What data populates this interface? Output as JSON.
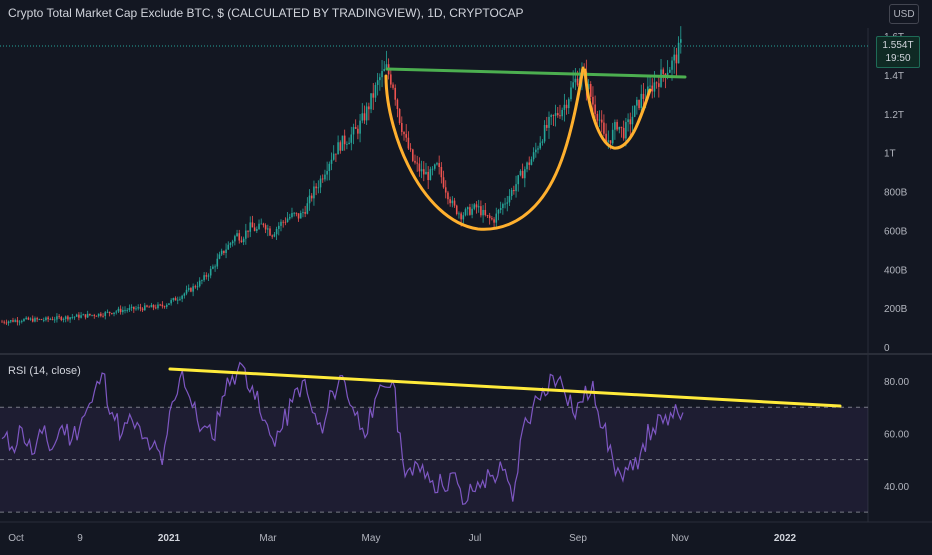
{
  "header": {
    "title": "Crypto Total Market Cap Exclude BTC, $ (CALCULATED BY TRADINGVIEW), 1D, CRYPTOCAP",
    "currency": "USD"
  },
  "price_tag": {
    "value": "1.554T",
    "countdown": "19:50"
  },
  "rsi_label": "RSI (14, close)",
  "colors": {
    "background": "#131722",
    "up_candle": "#26a69a",
    "down_candle": "#ef5350",
    "rsi_line": "#7e57c2",
    "trend_green": "#4caf50",
    "cup_orange": "#ffb02e",
    "rsi_trend_yellow": "#ffeb3b"
  },
  "chart_data": [
    {
      "type": "candlestick",
      "title": "Crypto Total Market Cap Exclude BTC, $ (CALCULATED BY TRADINGVIEW), 1D, CRYPTOCAP",
      "y_axis": {
        "ticks": [
          "1.6T",
          "1.4T",
          "1.2T",
          "1T",
          "800B",
          "600B",
          "400B",
          "200B",
          "0"
        ],
        "ylim": [
          0,
          1.6
        ]
      },
      "x_axis": {
        "ticks": [
          "Oct",
          "9",
          "2021",
          "Mar",
          "May",
          "Jul",
          "Sep",
          "Nov",
          "2022"
        ],
        "bold_ticks": [
          "2021",
          "2022"
        ]
      },
      "series": [
        {
          "x": [
            0,
            20,
            40,
            60,
            80,
            100,
            120,
            140,
            160,
            175,
            190,
            200,
            210,
            220,
            228,
            235,
            240,
            248,
            255,
            262,
            270,
            278,
            285,
            292,
            298,
            305,
            312,
            318,
            325,
            332,
            340,
            348,
            356,
            364,
            372,
            378,
            385,
            392,
            398,
            405,
            412,
            420,
            428,
            436,
            444,
            452,
            460,
            468,
            476,
            484,
            492,
            500,
            508,
            516,
            524,
            532,
            540,
            548,
            556,
            564,
            572,
            580,
            586,
            592,
            598,
            604,
            610,
            616,
            622,
            628,
            634,
            640,
            646,
            652,
            658,
            664,
            670,
            676,
            682
          ],
          "values": [
            0.13,
            0.14,
            0.14,
            0.15,
            0.16,
            0.17,
            0.19,
            0.2,
            0.21,
            0.25,
            0.3,
            0.34,
            0.4,
            0.48,
            0.53,
            0.58,
            0.56,
            0.62,
            0.6,
            0.64,
            0.58,
            0.63,
            0.66,
            0.68,
            0.67,
            0.72,
            0.8,
            0.85,
            0.93,
            1.0,
            1.05,
            1.08,
            1.12,
            1.2,
            1.3,
            1.38,
            1.43,
            1.35,
            1.18,
            1.05,
            0.95,
            0.9,
            0.88,
            0.93,
            0.82,
            0.72,
            0.68,
            0.7,
            0.72,
            0.67,
            0.65,
            0.72,
            0.78,
            0.85,
            0.92,
            0.98,
            1.08,
            1.15,
            1.2,
            1.25,
            1.35,
            1.42,
            1.35,
            1.25,
            1.18,
            1.05,
            1.08,
            1.15,
            1.1,
            1.15,
            1.22,
            1.28,
            1.3,
            1.35,
            1.38,
            1.42,
            1.45,
            1.5,
            1.58
          ]
        }
      ]
    },
    {
      "type": "line",
      "title": "RSI (14, close)",
      "y_axis": {
        "ticks": [
          "80.00",
          "60.00",
          "40.00"
        ],
        "ylim": [
          27,
          88
        ]
      },
      "series": [
        {
          "name": "RSI (14, close)",
          "x": [
            0,
            10,
            20,
            30,
            40,
            50,
            60,
            70,
            80,
            90,
            100,
            110,
            120,
            130,
            140,
            150,
            160,
            170,
            180,
            190,
            200,
            210,
            220,
            230,
            240,
            250,
            260,
            270,
            280,
            290,
            300,
            310,
            320,
            330,
            340,
            350,
            360,
            370,
            380,
            390,
            400,
            410,
            420,
            430,
            440,
            450,
            460,
            470,
            480,
            490,
            500,
            510,
            520,
            530,
            540,
            550,
            560,
            570,
            580,
            590,
            600,
            610,
            620,
            630,
            640,
            650,
            660,
            670,
            680
          ],
          "values": [
            58,
            55,
            62,
            52,
            60,
            54,
            63,
            58,
            66,
            72,
            83,
            68,
            60,
            65,
            58,
            55,
            48,
            72,
            84,
            70,
            62,
            58,
            74,
            82,
            86,
            78,
            65,
            58,
            62,
            72,
            80,
            68,
            60,
            76,
            82,
            70,
            62,
            66,
            78,
            80,
            50,
            44,
            48,
            42,
            40,
            45,
            33,
            38,
            42,
            44,
            46,
            34,
            62,
            70,
            77,
            82,
            78,
            68,
            72,
            80,
            62,
            50,
            42,
            46,
            56,
            62,
            64,
            66,
            68
          ]
        }
      ]
    }
  ]
}
